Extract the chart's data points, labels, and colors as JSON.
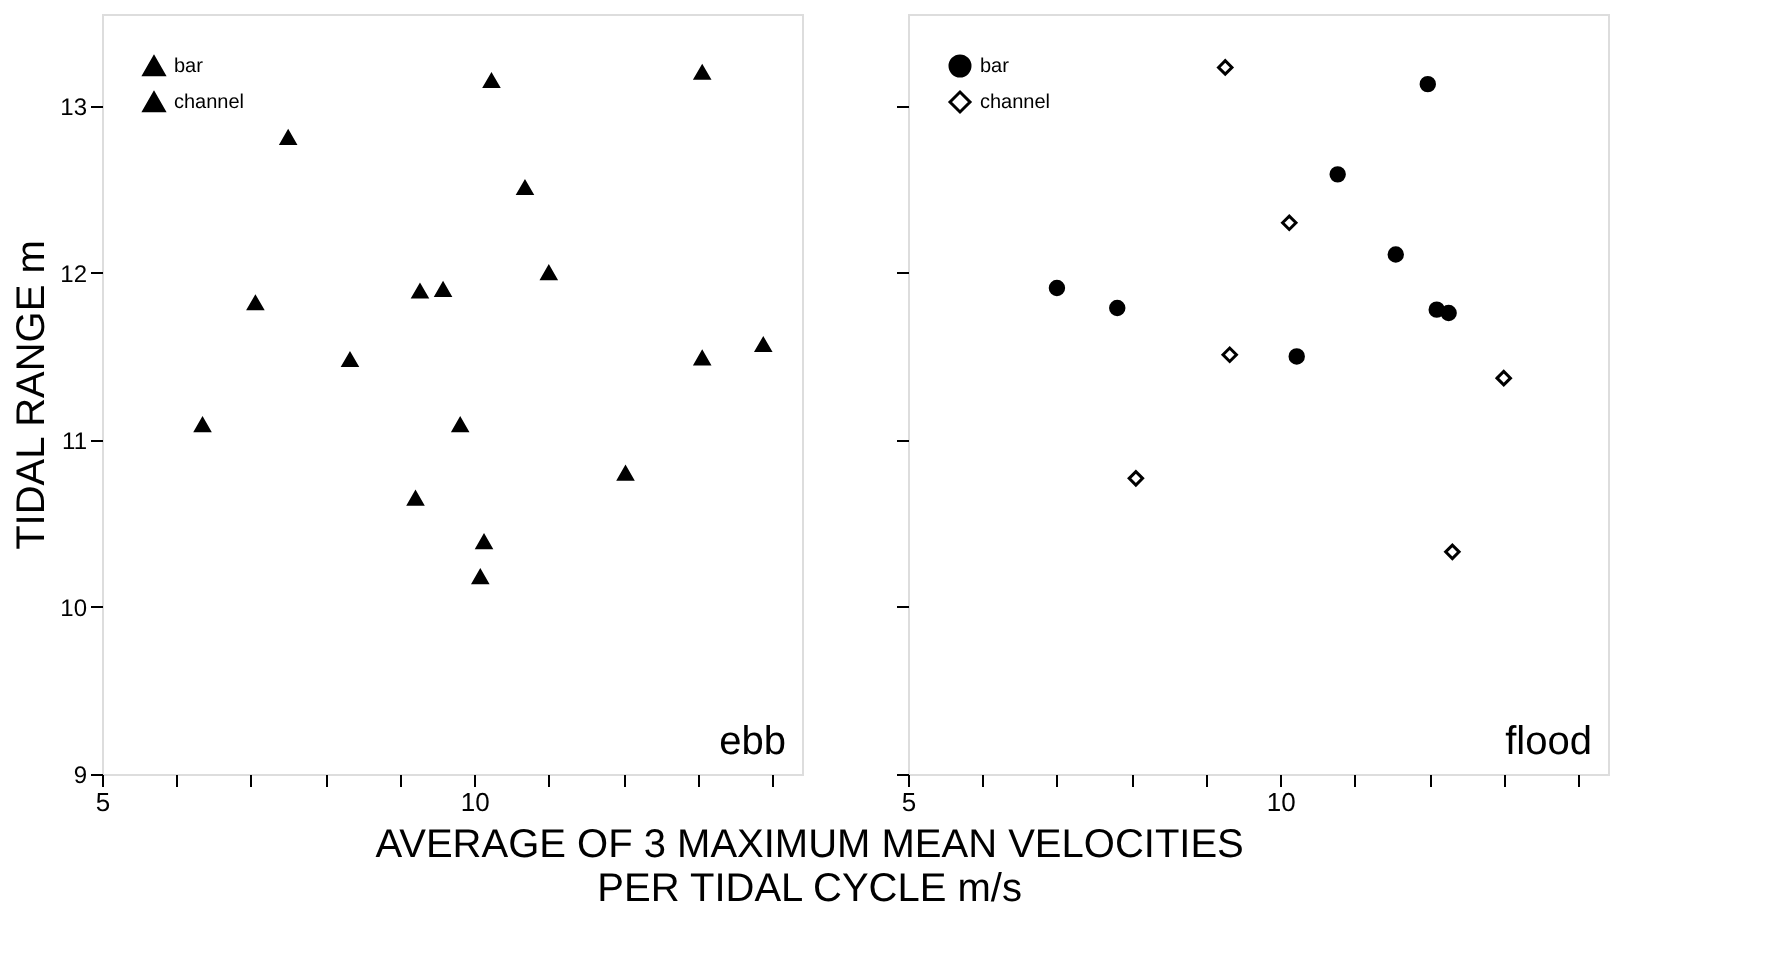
{
  "chart_data": [
    {
      "type": "scatter",
      "ylabel": "TIDAL RANGE m",
      "xlabel": "AVERAGE OF 3 MAXIMUM MEAN VELOCITIES\nPER TIDAL CYCLE m/s",
      "annotations": [
        "ebb"
      ],
      "xlim": [
        5,
        14.4
      ],
      "ylim": [
        9,
        13.55
      ],
      "xticks": [
        5,
        {
          "value": 6,
          "label": null
        },
        {
          "value": 7,
          "label": null
        },
        {
          "value": 8,
          "label": null
        },
        {
          "value": 9,
          "label": null
        },
        10,
        {
          "value": 11,
          "label": null
        },
        {
          "value": 12,
          "label": null
        },
        {
          "value": 13,
          "label": null
        },
        {
          "value": 14,
          "label": null
        }
      ],
      "yticks": [
        9,
        10,
        11,
        12,
        13
      ],
      "grid": false,
      "legend": "top left",
      "series": [
        {
          "name": "bar",
          "color": "#000000",
          "marker": "triangle",
          "x": [
            6.35,
            7.06,
            9.27,
            9.58,
            9.81,
            10.23,
            10.13,
            10.68,
            11.0,
            12.03,
            13.06,
            13.88
          ],
          "values": [
            11.09,
            11.82,
            11.89,
            11.9,
            11.09,
            13.15,
            10.39,
            12.51,
            12.0,
            10.8,
            11.49,
            11.57
          ]
        },
        {
          "name": "channel",
          "color": "#000000",
          "marker": "triangle",
          "x": [
            7.5,
            8.33,
            9.21,
            10.08,
            13.06
          ],
          "values": [
            12.81,
            11.48,
            10.65,
            10.18,
            13.2
          ]
        }
      ]
    },
    {
      "type": "scatter",
      "annotations": [
        "flood"
      ],
      "xlim": [
        5,
        14.4
      ],
      "ylim": [
        9,
        13.55
      ],
      "xticks": [
        5,
        {
          "value": 6,
          "label": null
        },
        {
          "value": 7,
          "label": null
        },
        {
          "value": 8,
          "label": null
        },
        {
          "value": 9,
          "label": null
        },
        10,
        {
          "value": 11,
          "label": null
        },
        {
          "value": 12,
          "label": null
        },
        {
          "value": 13,
          "label": null
        },
        {
          "value": 14,
          "label": null
        }
      ],
      "yticks": [
        9,
        10,
        11,
        12,
        13
      ],
      "tick_labels": "x",
      "grid": false,
      "legend": "top left",
      "series": [
        {
          "name": "bar",
          "color": "#000000",
          "marker": "circle",
          "x": [
            7.0,
            7.81,
            10.22,
            10.77,
            11.55,
            11.98,
            12.1,
            12.26
          ],
          "values": [
            11.91,
            11.79,
            11.5,
            12.59,
            12.11,
            13.13,
            11.78,
            11.76
          ]
        },
        {
          "name": "channel",
          "color": "#000000",
          "marker": "diamond",
          "x": [
            9.32,
            8.06,
            13.0,
            10.12,
            9.26,
            12.31
          ],
          "values": [
            11.51,
            10.77,
            11.37,
            12.3,
            13.23,
            10.33
          ]
        }
      ]
    }
  ]
}
